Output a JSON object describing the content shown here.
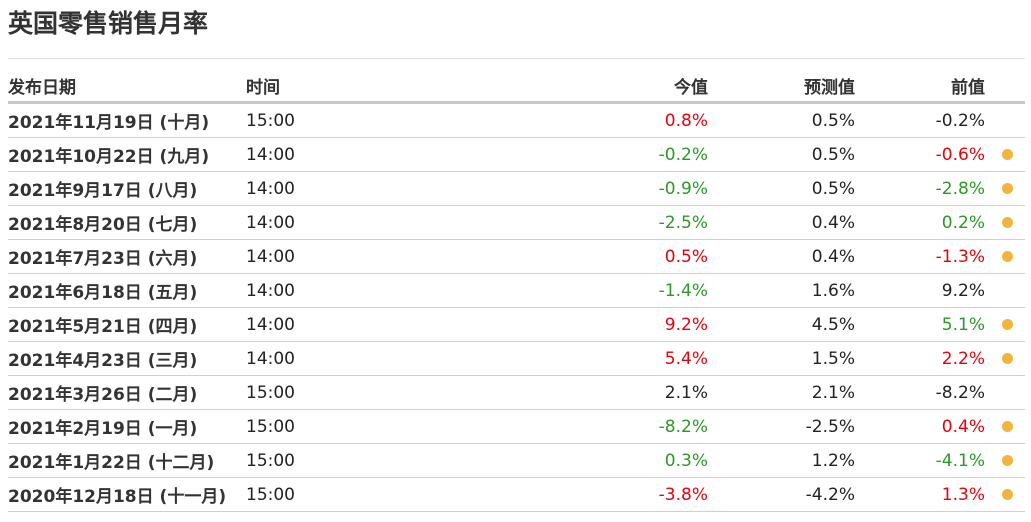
{
  "title": "英国零售销售月率",
  "columns": {
    "date": "发布日期",
    "time": "时间",
    "actual": "今值",
    "forecast": "预测值",
    "previous": "前值"
  },
  "colors": {
    "up": "#e8000b",
    "down": "#2a9a24",
    "neutral": "#222222",
    "revised_dot": "#f1b43e"
  },
  "rows": [
    {
      "date": "2021年11月19日 (十月)",
      "time": "15:00",
      "actual": "0.8%",
      "actual_color": "red",
      "forecast": "0.5%",
      "previous": "-0.2%",
      "previous_color": "black",
      "revised": false
    },
    {
      "date": "2021年10月22日 (九月)",
      "time": "14:00",
      "actual": "-0.2%",
      "actual_color": "green",
      "forecast": "0.5%",
      "previous": "-0.6%",
      "previous_color": "red",
      "revised": true
    },
    {
      "date": "2021年9月17日 (八月)",
      "time": "14:00",
      "actual": "-0.9%",
      "actual_color": "green",
      "forecast": "0.5%",
      "previous": "-2.8%",
      "previous_color": "green",
      "revised": true
    },
    {
      "date": "2021年8月20日 (七月)",
      "time": "14:00",
      "actual": "-2.5%",
      "actual_color": "green",
      "forecast": "0.4%",
      "previous": "0.2%",
      "previous_color": "green",
      "revised": true
    },
    {
      "date": "2021年7月23日 (六月)",
      "time": "14:00",
      "actual": "0.5%",
      "actual_color": "red",
      "forecast": "0.4%",
      "previous": "-1.3%",
      "previous_color": "red",
      "revised": true
    },
    {
      "date": "2021年6月18日 (五月)",
      "time": "14:00",
      "actual": "-1.4%",
      "actual_color": "green",
      "forecast": "1.6%",
      "previous": "9.2%",
      "previous_color": "black",
      "revised": false
    },
    {
      "date": "2021年5月21日 (四月)",
      "time": "14:00",
      "actual": "9.2%",
      "actual_color": "red",
      "forecast": "4.5%",
      "previous": "5.1%",
      "previous_color": "green",
      "revised": true
    },
    {
      "date": "2021年4月23日 (三月)",
      "time": "14:00",
      "actual": "5.4%",
      "actual_color": "red",
      "forecast": "1.5%",
      "previous": "2.2%",
      "previous_color": "red",
      "revised": true
    },
    {
      "date": "2021年3月26日 (二月)",
      "time": "15:00",
      "actual": "2.1%",
      "actual_color": "black",
      "forecast": "2.1%",
      "previous": "-8.2%",
      "previous_color": "black",
      "revised": false
    },
    {
      "date": "2021年2月19日 (一月)",
      "time": "15:00",
      "actual": "-8.2%",
      "actual_color": "green",
      "forecast": "-2.5%",
      "previous": "0.4%",
      "previous_color": "red",
      "revised": true
    },
    {
      "date": "2021年1月22日 (十二月)",
      "time": "15:00",
      "actual": "0.3%",
      "actual_color": "green",
      "forecast": "1.2%",
      "previous": "-4.1%",
      "previous_color": "green",
      "revised": true
    },
    {
      "date": "2020年12月18日 (十一月)",
      "time": "15:00",
      "actual": "-3.8%",
      "actual_color": "red",
      "forecast": "-4.2%",
      "previous": "1.3%",
      "previous_color": "red",
      "revised": true
    }
  ]
}
